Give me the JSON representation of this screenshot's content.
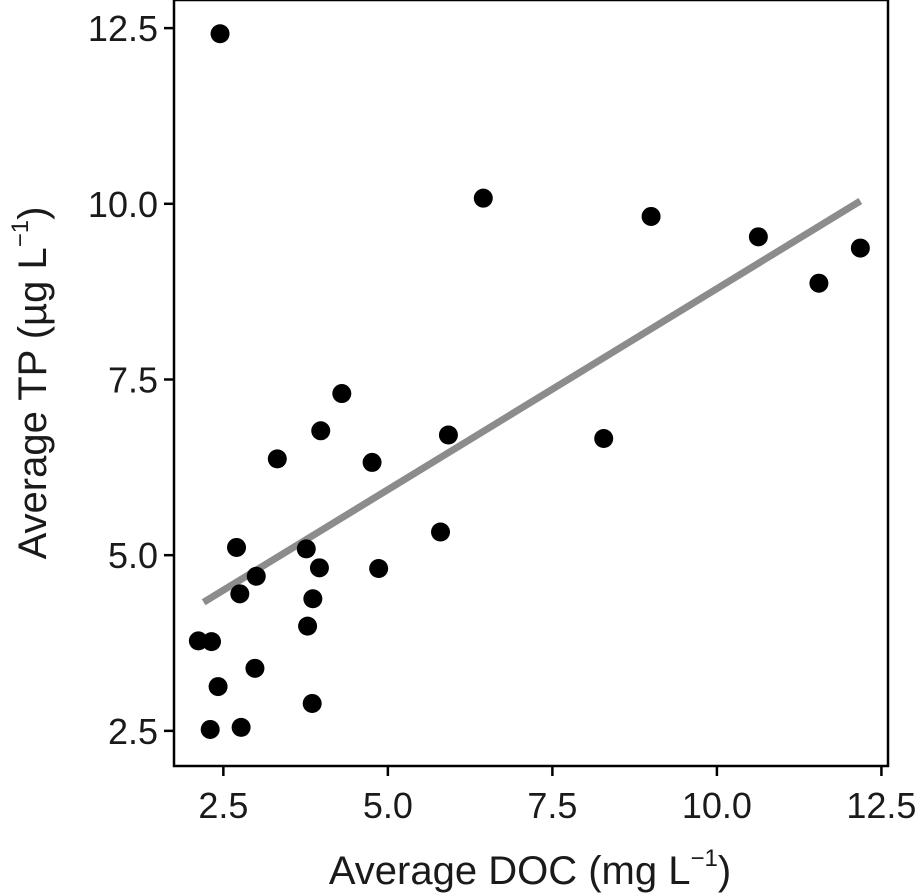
{
  "chart_data": {
    "type": "scatter",
    "xlabel": "Average DOC (mg L",
    "xlabel_sup": "−1",
    "xlabel_close": ")",
    "ylabel": "Average TP (µg L",
    "ylabel_sup": "−1",
    "ylabel_close": ")",
    "xlim": [
      1.75,
      12.6
    ],
    "ylim": [
      2.0,
      12.9
    ],
    "x_ticks": [
      2.5,
      5.0,
      7.5,
      10.0,
      12.5
    ],
    "x_tick_labels": [
      "2.5",
      "5.0",
      "7.5",
      "10.0",
      "12.5"
    ],
    "y_ticks": [
      2.5,
      5.0,
      7.5,
      10.0,
      12.5
    ],
    "y_tick_labels": [
      "2.5",
      "5.0",
      "7.5",
      "10.0",
      "12.5"
    ],
    "grid": false,
    "legend": "none",
    "point_color": "#000000",
    "trendline_color": "#8c8c8c",
    "points": [
      {
        "x": 2.45,
        "y": 12.42
      },
      {
        "x": 6.45,
        "y": 10.08
      },
      {
        "x": 9.0,
        "y": 9.82
      },
      {
        "x": 10.63,
        "y": 9.53
      },
      {
        "x": 12.18,
        "y": 9.37
      },
      {
        "x": 11.55,
        "y": 8.87
      },
      {
        "x": 4.3,
        "y": 7.3
      },
      {
        "x": 3.98,
        "y": 6.77
      },
      {
        "x": 5.92,
        "y": 6.71
      },
      {
        "x": 8.28,
        "y": 6.66
      },
      {
        "x": 3.32,
        "y": 6.37
      },
      {
        "x": 4.76,
        "y": 6.32
      },
      {
        "x": 5.8,
        "y": 5.33
      },
      {
        "x": 2.7,
        "y": 5.11
      },
      {
        "x": 3.76,
        "y": 5.09
      },
      {
        "x": 3.96,
        "y": 4.82
      },
      {
        "x": 4.86,
        "y": 4.81
      },
      {
        "x": 3.0,
        "y": 4.7
      },
      {
        "x": 2.75,
        "y": 4.45
      },
      {
        "x": 3.86,
        "y": 4.38
      },
      {
        "x": 3.78,
        "y": 3.99
      },
      {
        "x": 2.12,
        "y": 3.78
      },
      {
        "x": 2.32,
        "y": 3.77
      },
      {
        "x": 2.98,
        "y": 3.39
      },
      {
        "x": 2.42,
        "y": 3.13
      },
      {
        "x": 3.85,
        "y": 2.89
      },
      {
        "x": 2.3,
        "y": 2.52
      },
      {
        "x": 2.77,
        "y": 2.55
      }
    ],
    "trendline": {
      "x1": 2.2,
      "y1": 4.33,
      "x2": 12.18,
      "y2": 10.04
    }
  }
}
